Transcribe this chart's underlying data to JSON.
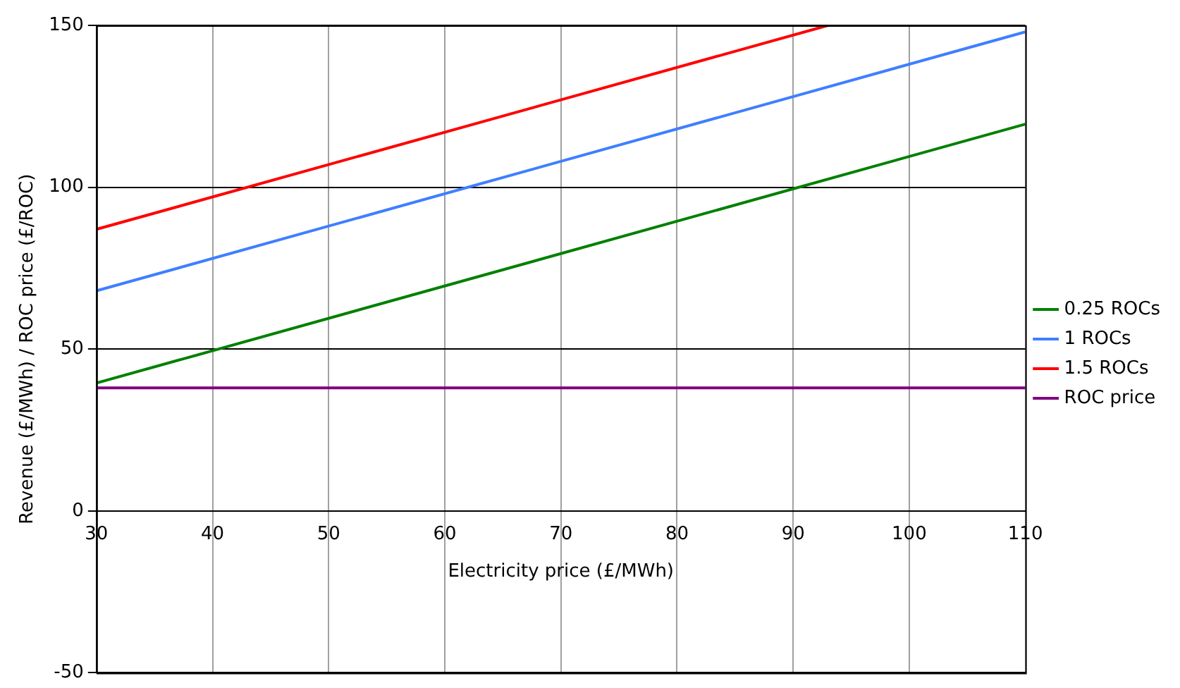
{
  "chart_data": {
    "type": "line",
    "xlabel": "Electricity price (£/MWh)",
    "ylabel": "Revenue (£/MWh) / ROC price (£/ROC)",
    "xlim": [
      30,
      110
    ],
    "xticks": [
      30,
      40,
      50,
      60,
      70,
      80,
      90,
      100,
      110
    ],
    "ylim": [
      -50,
      150
    ],
    "yticks": [
      -50,
      0,
      50,
      100,
      150
    ],
    "grid": true,
    "legend": "right",
    "marker": "none",
    "line_style": "solid",
    "series": [
      {
        "name": "0.25 ROCs",
        "color": "#008000",
        "x": [
          30,
          110
        ],
        "values": [
          39.5,
          119.5
        ]
      },
      {
        "name": "1 ROCs",
        "color": "#3f7fff",
        "x": [
          30,
          110
        ],
        "values": [
          68,
          148
        ]
      },
      {
        "name": "1.5 ROCs",
        "color": "#ff0000",
        "x": [
          30,
          93
        ],
        "values": [
          87,
          150
        ]
      },
      {
        "name": "ROC price",
        "color": "#800080",
        "x": [
          30,
          110
        ],
        "values": [
          38,
          38
        ]
      }
    ]
  }
}
